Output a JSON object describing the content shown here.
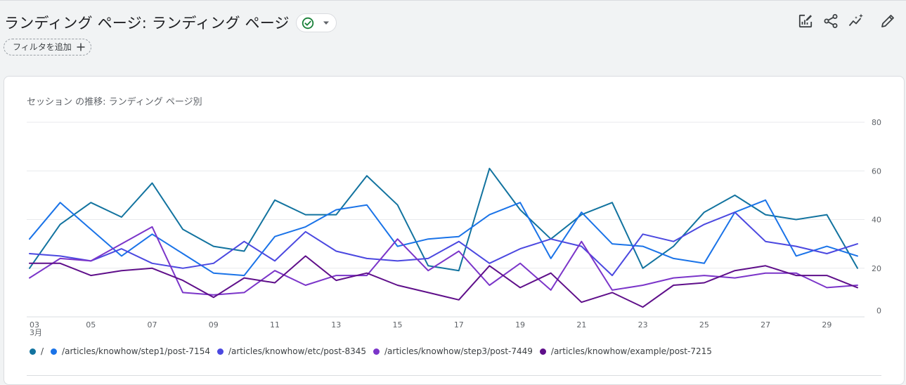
{
  "header": {
    "title": "ランディング ページ: ランディング ページ",
    "filter_label": "フィルタを追加"
  },
  "toolbar": {
    "icons": [
      "edit-report-icon",
      "share-icon",
      "insights-icon",
      "pencil-icon"
    ]
  },
  "colors": {
    "accent": "#1a73e8",
    "status_ok": "#188038"
  },
  "chart_data": {
    "type": "line",
    "title": "セッション の推移: ランディング ページ別",
    "xlabel": "",
    "ylabel": "",
    "x": [
      "03",
      "04",
      "05",
      "06",
      "07",
      "08",
      "09",
      "10",
      "11",
      "12",
      "13",
      "14",
      "15",
      "16",
      "17",
      "18",
      "19",
      "20",
      "21",
      "22",
      "23",
      "24",
      "25",
      "26",
      "27",
      "28",
      "29",
      "30"
    ],
    "x_tick_labels": [
      "03",
      "05",
      "07",
      "09",
      "11",
      "13",
      "15",
      "17",
      "19",
      "21",
      "23",
      "25",
      "27",
      "29"
    ],
    "x_month_label": "3月",
    "y_ticks": [
      0,
      20,
      40,
      60,
      80
    ],
    "ylim": [
      0,
      80
    ],
    "grid": true,
    "legend_position": "bottom",
    "series": [
      {
        "name": "/",
        "color": "#12739f",
        "values": [
          20,
          38,
          47,
          41,
          55,
          36,
          29,
          27,
          48,
          42,
          42,
          58,
          46,
          21,
          19,
          61,
          44,
          32,
          42,
          47,
          20,
          29,
          43,
          50,
          42,
          40,
          42,
          20
        ]
      },
      {
        "name": "/articles/knowhow/step1/post-7154",
        "color": "#1a73e8",
        "values": [
          32,
          47,
          36,
          25,
          34,
          26,
          18,
          17,
          33,
          37,
          44,
          46,
          29,
          32,
          33,
          42,
          47,
          24,
          43,
          30,
          29,
          24,
          22,
          43,
          48,
          25,
          29,
          25
        ]
      },
      {
        "name": "/articles/knowhow/etc/post-8345",
        "color": "#4b48e0",
        "values": [
          26,
          25,
          23,
          28,
          22,
          20,
          22,
          31,
          23,
          35,
          27,
          24,
          23,
          24,
          31,
          22,
          28,
          32,
          29,
          17,
          34,
          31,
          38,
          43,
          31,
          29,
          26,
          30
        ]
      },
      {
        "name": "/articles/knowhow/step3/post-7449",
        "color": "#7b35c9",
        "values": [
          16,
          24,
          23,
          30,
          37,
          10,
          9,
          10,
          19,
          13,
          17,
          17,
          32,
          19,
          27,
          13,
          22,
          11,
          31,
          11,
          13,
          16,
          17,
          16,
          18,
          18,
          12,
          13
        ]
      },
      {
        "name": "/articles/knowhow/example/post-7215",
        "color": "#5f0f8a",
        "values": [
          22,
          22,
          17,
          19,
          20,
          15,
          8,
          16,
          14,
          25,
          15,
          18,
          13,
          10,
          7,
          21,
          12,
          18,
          6,
          10,
          4,
          13,
          14,
          19,
          21,
          17,
          17,
          12
        ]
      }
    ]
  }
}
